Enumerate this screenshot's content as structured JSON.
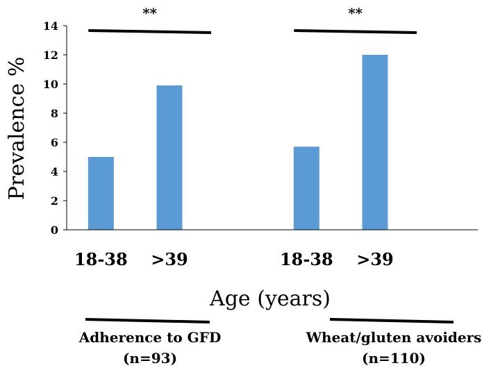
{
  "chart_data": {
    "type": "bar",
    "ylabel": "Prevalence %",
    "xlabel": "Age (years)",
    "ylim": [
      0,
      14
    ],
    "yticks": [
      "0",
      "2",
      "4",
      "6",
      "8",
      "10",
      "12",
      "14"
    ],
    "grid": false,
    "groups": [
      {
        "name": "Adherence to GFD",
        "n_label": "(n=93)",
        "significance": "**",
        "categories": [
          "18-38",
          ">39"
        ],
        "values": [
          5.0,
          9.9
        ]
      },
      {
        "name": "Wheat/gluten avoiders",
        "n_label": "(n=110)",
        "significance": "**",
        "categories": [
          "18-38",
          ">39"
        ],
        "values": [
          5.7,
          12.0
        ]
      }
    ],
    "colors": {
      "bar": "#5b9bd5",
      "axis": "#000000"
    }
  }
}
